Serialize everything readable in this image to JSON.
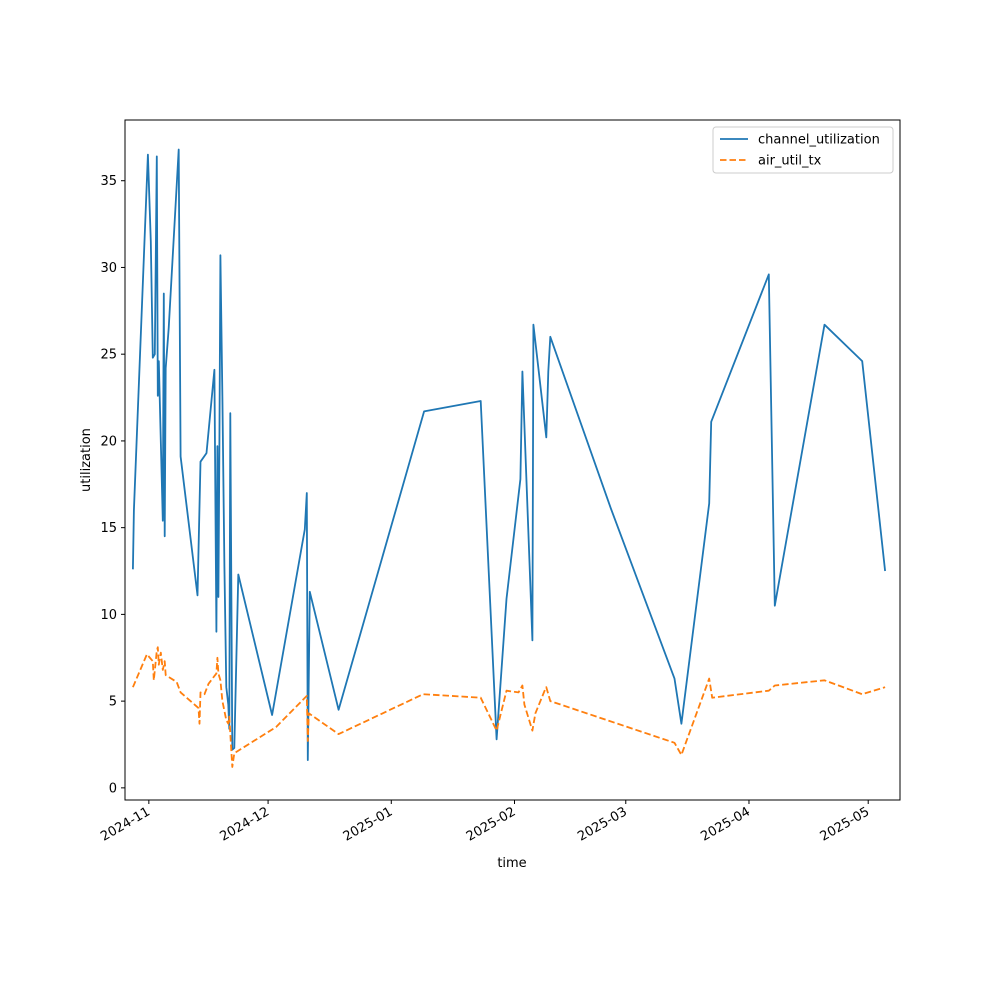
{
  "chart_data": {
    "type": "line",
    "xlabel": "time",
    "ylabel": "utilization",
    "x_range": [
      "2024-10-26",
      "2025-05-09"
    ],
    "ylim": [
      -0.7,
      38.5
    ],
    "x_ticks": [
      "2024-11-01",
      "2024-12-01",
      "2025-01-01",
      "2025-02-01",
      "2025-03-01",
      "2025-04-01",
      "2025-05-01"
    ],
    "x_tick_labels": [
      "2024-11",
      "2024-12",
      "2025-01",
      "2025-02",
      "2025-03",
      "2025-04",
      "2025-05"
    ],
    "y_ticks": [
      0,
      5,
      10,
      15,
      20,
      25,
      30,
      35
    ],
    "y_tick_labels": [
      "0",
      "5",
      "10",
      "15",
      "20",
      "25",
      "30",
      "35"
    ],
    "grid": false,
    "legend_position": "top-right",
    "series": [
      {
        "name": "channel_utilization",
        "color": "#1f77b4",
        "dash": "solid",
        "points": [
          [
            "2024-10-28",
            12.6
          ],
          [
            "2024-10-28 06:00",
            16.0
          ],
          [
            "2024-10-31 18:00",
            36.5
          ],
          [
            "2024-11-01 12:00",
            31.5
          ],
          [
            "2024-11-02",
            24.8
          ],
          [
            "2024-11-02 12:00",
            25.0
          ],
          [
            "2024-11-03",
            36.4
          ],
          [
            "2024-11-03 06:00",
            22.6
          ],
          [
            "2024-11-03 12:00",
            24.6
          ],
          [
            "2024-11-04 12:00",
            15.4
          ],
          [
            "2024-11-04 18:00",
            28.5
          ],
          [
            "2024-11-05",
            14.5
          ],
          [
            "2024-11-05 06:00",
            24.2
          ],
          [
            "2024-11-06",
            26.5
          ],
          [
            "2024-11-08 12:00",
            36.8
          ],
          [
            "2024-11-09",
            19.1
          ],
          [
            "2024-11-13 06:00",
            11.1
          ],
          [
            "2024-11-14",
            18.8
          ],
          [
            "2024-11-15 12:00",
            19.3
          ],
          [
            "2024-11-17 12:00",
            24.1
          ],
          [
            "2024-11-18",
            9.0
          ],
          [
            "2024-11-18 06:00",
            19.7
          ],
          [
            "2024-11-18 12:00",
            11.0
          ],
          [
            "2024-11-18 18:00",
            19.7
          ],
          [
            "2024-11-19",
            30.7
          ],
          [
            "2024-11-19 12:00",
            22.5
          ],
          [
            "2024-11-20",
            12.8
          ],
          [
            "2024-11-20 12:00",
            5.8
          ],
          [
            "2024-11-21",
            4.8
          ],
          [
            "2024-11-21 06:00",
            3.4
          ],
          [
            "2024-11-21 12:00",
            21.6
          ],
          [
            "2024-11-22",
            2.2
          ],
          [
            "2024-11-22 12:00",
            2.3
          ],
          [
            "2024-11-23 12:00",
            12.3
          ],
          [
            "2024-12-02",
            4.2
          ],
          [
            "2024-12-10 06:00",
            14.9
          ],
          [
            "2024-12-10 18:00",
            17.0
          ],
          [
            "2024-12-11",
            1.6
          ],
          [
            "2024-12-11 12:00",
            11.3
          ],
          [
            "2024-12-18 18:00",
            4.5
          ],
          [
            "2025-01-09 06:00",
            21.7
          ],
          [
            "2025-01-23 12:00",
            22.3
          ],
          [
            "2025-01-27 12:00",
            2.8
          ],
          [
            "2025-01-30",
            10.9
          ],
          [
            "2025-02-02 12:00",
            17.8
          ],
          [
            "2025-02-03",
            24.0
          ],
          [
            "2025-02-05 12:00",
            8.5
          ],
          [
            "2025-02-05 18:00",
            26.7
          ],
          [
            "2025-02-09",
            20.2
          ],
          [
            "2025-02-09 12:00",
            24.0
          ],
          [
            "2025-02-10",
            26.0
          ],
          [
            "2025-02-25 06:00",
            16.1
          ],
          [
            "2025-03-13 06:00",
            6.3
          ],
          [
            "2025-03-15",
            3.7
          ],
          [
            "2025-03-22",
            16.4
          ],
          [
            "2025-03-22 12:00",
            21.1
          ],
          [
            "2025-04-06",
            29.6
          ],
          [
            "2025-04-07 12:00",
            10.5
          ],
          [
            "2025-04-20",
            26.7
          ],
          [
            "2025-04-29 12:00",
            24.6
          ],
          [
            "2025-05-05 06:00",
            12.5
          ]
        ]
      },
      {
        "name": "air_util_tx",
        "color": "#ff7f0e",
        "dash": "dashed",
        "points": [
          [
            "2024-10-28",
            5.8
          ],
          [
            "2024-10-31 12:00",
            7.7
          ],
          [
            "2024-11-02",
            7.3
          ],
          [
            "2024-11-02 06:00",
            6.2
          ],
          [
            "2024-11-03",
            7.9
          ],
          [
            "2024-11-03 06:00",
            8.1
          ],
          [
            "2024-11-03 12:00",
            7.1
          ],
          [
            "2024-11-04",
            7.8
          ],
          [
            "2024-11-04 12:00",
            6.8
          ],
          [
            "2024-11-05",
            7.3
          ],
          [
            "2024-11-05 06:00",
            6.5
          ],
          [
            "2024-11-08",
            6.1
          ],
          [
            "2024-11-09",
            5.5
          ],
          [
            "2024-11-13 12:00",
            4.6
          ],
          [
            "2024-11-13 18:00",
            3.7
          ],
          [
            "2024-11-14",
            5.5
          ],
          [
            "2024-11-15",
            5.4
          ],
          [
            "2024-11-16",
            6.0
          ],
          [
            "2024-11-18",
            6.6
          ],
          [
            "2024-11-18 06:00",
            7.5
          ],
          [
            "2024-11-18 12:00",
            6.6
          ],
          [
            "2024-11-19",
            6.2
          ],
          [
            "2024-11-19 12:00",
            5.0
          ],
          [
            "2024-11-20 12:00",
            3.9
          ],
          [
            "2024-11-21",
            3.7
          ],
          [
            "2024-11-21 06:00",
            4.1
          ],
          [
            "2024-11-22",
            1.2
          ],
          [
            "2024-11-22 12:00",
            2.0
          ],
          [
            "2024-12-03",
            3.5
          ],
          [
            "2024-12-10 18:00",
            5.3
          ],
          [
            "2024-12-11",
            2.7
          ],
          [
            "2024-12-11 06:00",
            4.3
          ],
          [
            "2024-12-18 18:00",
            3.1
          ],
          [
            "2025-01-09",
            5.4
          ],
          [
            "2025-01-23 12:00",
            5.2
          ],
          [
            "2025-01-27 12:00",
            3.3
          ],
          [
            "2025-01-30",
            5.6
          ],
          [
            "2025-02-02",
            5.5
          ],
          [
            "2025-02-03",
            5.9
          ],
          [
            "2025-02-03 12:00",
            4.8
          ],
          [
            "2025-02-05 12:00",
            3.3
          ],
          [
            "2025-02-06 06:00",
            4.3
          ],
          [
            "2025-02-08 18:00",
            5.7
          ],
          [
            "2025-02-09",
            5.8
          ],
          [
            "2025-02-10",
            5.0
          ],
          [
            "2025-03-13 06:00",
            2.6
          ],
          [
            "2025-03-15",
            1.9
          ],
          [
            "2025-03-22",
            6.3
          ],
          [
            "2025-03-22 18:00",
            5.2
          ],
          [
            "2025-04-06",
            5.6
          ],
          [
            "2025-04-07 12:00",
            5.9
          ],
          [
            "2025-04-20",
            6.2
          ],
          [
            "2025-04-29 12:00",
            5.4
          ],
          [
            "2025-05-05 06:00",
            5.8
          ]
        ]
      }
    ]
  }
}
